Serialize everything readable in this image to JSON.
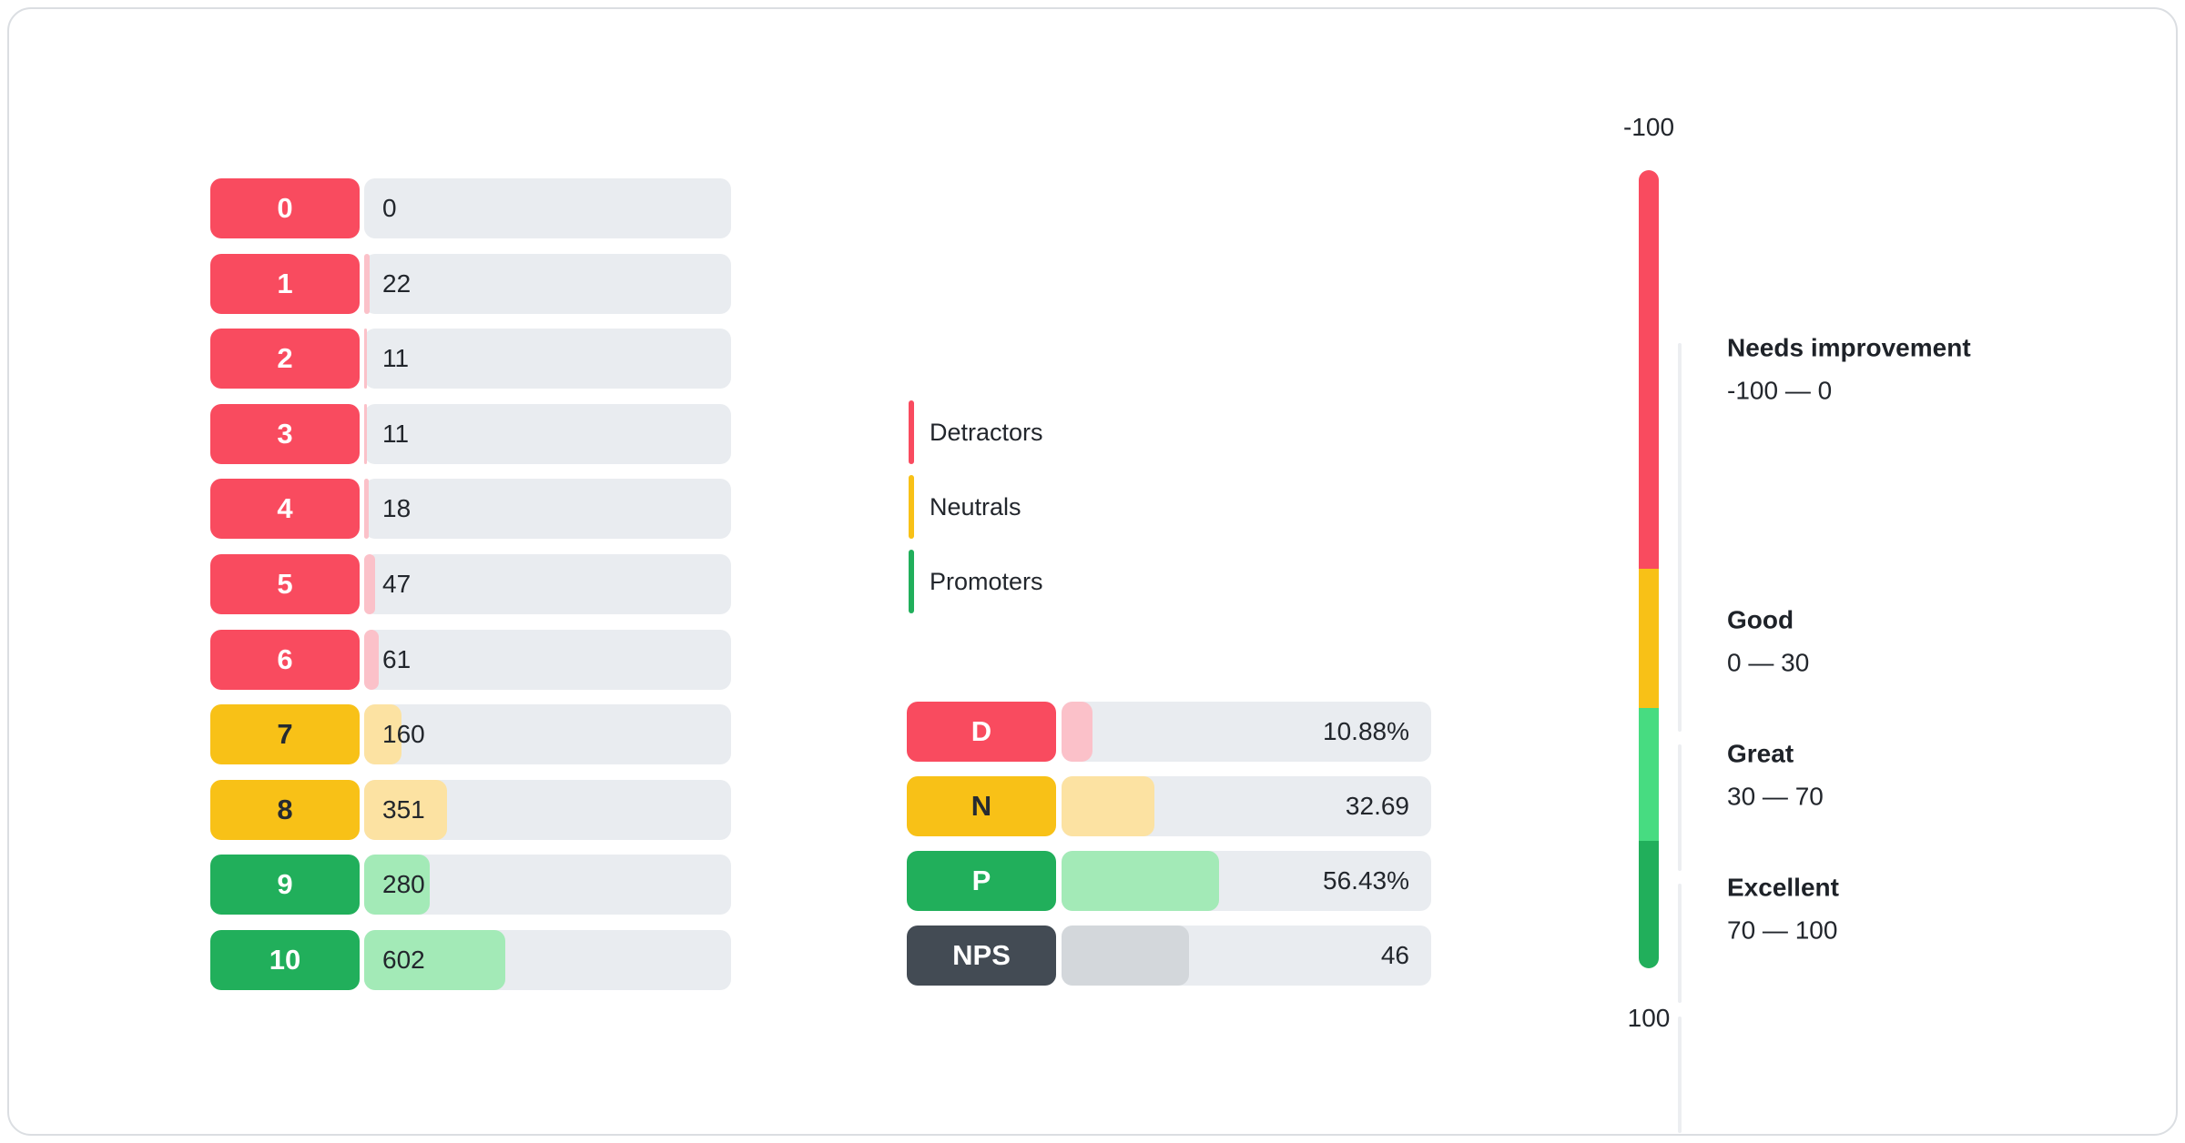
{
  "colors": {
    "detractor": "#F94B5F",
    "neutral": "#F8C117",
    "promoter": "#21AF5B",
    "detractor_fill": "#FBC1C9",
    "neutral_fill": "#FCE2A2",
    "promoter_fill": "#A3EAB7",
    "nps_label": "#434B54",
    "nps_fill": "#D3D7DB",
    "bar_track": "#E9ECF0",
    "gauge_great": "#47DC81",
    "text": "#22262C",
    "card_border": "#DBDEE2"
  },
  "score_chart": {
    "rows": [
      {
        "score": "0",
        "count": "0",
        "group": "detractor",
        "pct": 0
      },
      {
        "score": "1",
        "count": "22",
        "group": "detractor",
        "pct": 1.41
      },
      {
        "score": "2",
        "count": "11",
        "group": "detractor",
        "pct": 0.7
      },
      {
        "score": "3",
        "count": "11",
        "group": "detractor",
        "pct": 0.7
      },
      {
        "score": "4",
        "count": "18",
        "group": "detractor",
        "pct": 1.15
      },
      {
        "score": "5",
        "count": "47",
        "group": "detractor",
        "pct": 3.01
      },
      {
        "score": "6",
        "count": "61",
        "group": "detractor",
        "pct": 3.9
      },
      {
        "score": "7",
        "count": "160",
        "group": "neutral",
        "pct": 10.24
      },
      {
        "score": "8",
        "count": "351",
        "group": "neutral",
        "pct": 22.46
      },
      {
        "score": "9",
        "count": "280",
        "group": "promoter",
        "pct": 17.91
      },
      {
        "score": "10",
        "count": "602",
        "group": "promoter",
        "pct": 38.52
      }
    ]
  },
  "legend": {
    "items": [
      {
        "label": "Detractors",
        "group": "detractor"
      },
      {
        "label": "Neutrals",
        "group": "neutral"
      },
      {
        "label": "Promoters",
        "group": "promoter"
      }
    ]
  },
  "summary": {
    "rows": [
      {
        "label": "D",
        "value": "10.88%",
        "group": "detractor",
        "pct": 8.4
      },
      {
        "label": "N",
        "value": "32.69",
        "group": "neutral",
        "pct": 25.2
      },
      {
        "label": "P",
        "value": "56.43%",
        "group": "promoter",
        "pct": 42.5
      },
      {
        "label": "NPS",
        "value": "46",
        "group": "nps",
        "pct": 34.5
      }
    ]
  },
  "gauge": {
    "top_label": "-100",
    "bottom_label": "100",
    "zones": [
      {
        "title": "Needs improvement",
        "range": "-100 — 0",
        "color": "#F94B5F"
      },
      {
        "title": "Good",
        "range": "0 — 30",
        "color": "#F8C117"
      },
      {
        "title": "Great",
        "range": "30 — 70",
        "color": "#47DC81"
      },
      {
        "title": "Excellent",
        "range": "70 — 100",
        "color": "#21AF5B"
      }
    ]
  },
  "chart_data": [
    {
      "type": "bar",
      "title": "",
      "orientation": "horizontal",
      "categories": [
        "0",
        "1",
        "2",
        "3",
        "4",
        "5",
        "6",
        "7",
        "8",
        "9",
        "10"
      ],
      "values": [
        0,
        22,
        11,
        11,
        18,
        47,
        61,
        160,
        351,
        280,
        602
      ],
      "category_groups": [
        "detractor",
        "detractor",
        "detractor",
        "detractor",
        "detractor",
        "detractor",
        "detractor",
        "neutral",
        "neutral",
        "promoter",
        "promoter"
      ],
      "xlabel": "",
      "ylabel": "",
      "grid": false,
      "legend_position": "right",
      "legend_entries": [
        "Detractors",
        "Neutrals",
        "Promoters"
      ]
    },
    {
      "type": "bar",
      "title": "",
      "orientation": "horizontal",
      "categories": [
        "D",
        "N",
        "P",
        "NPS"
      ],
      "values": [
        10.88,
        32.69,
        56.43,
        46
      ],
      "value_labels": [
        "10.88%",
        "32.69",
        "56.43%",
        "46"
      ],
      "xlabel": "",
      "ylabel": "",
      "grid": false
    },
    {
      "type": "gauge",
      "title": "",
      "min": -100,
      "max": 100,
      "orientation": "vertical",
      "zones": [
        {
          "label": "Needs improvement",
          "from": -100,
          "to": 0
        },
        {
          "label": "Good",
          "from": 0,
          "to": 30
        },
        {
          "label": "Great",
          "from": 30,
          "to": 70
        },
        {
          "label": "Excellent",
          "from": 70,
          "to": 100
        }
      ]
    }
  ]
}
